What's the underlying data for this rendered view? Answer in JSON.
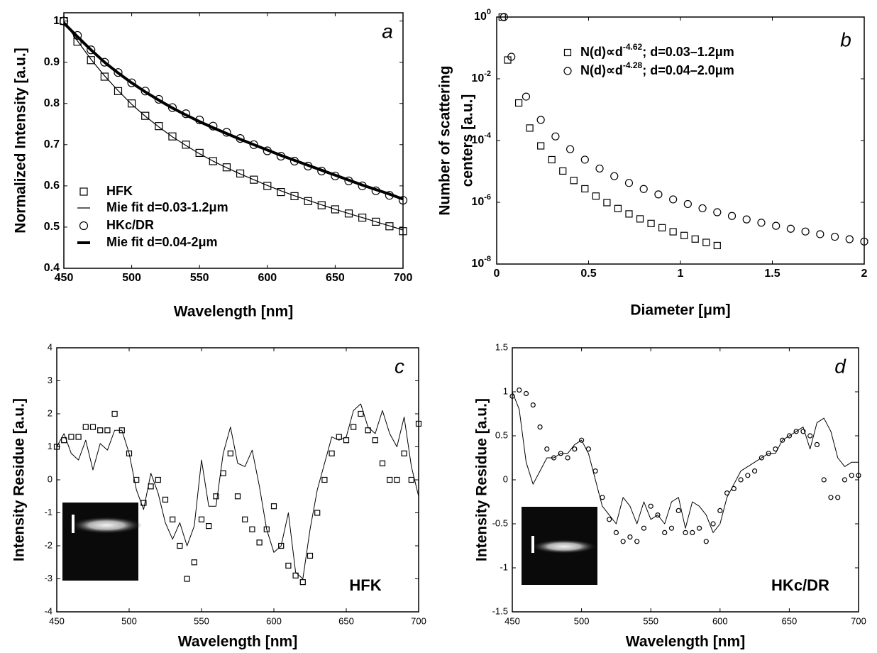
{
  "chart_data": [
    {
      "type": "line",
      "annotation": "a",
      "xlabel": "Wavelength [nm]",
      "ylabel": "Normalized Intensity [a.u.]",
      "xlim": [
        450,
        700
      ],
      "xticks": [
        450,
        500,
        550,
        600,
        650,
        700
      ],
      "ylim": [
        0.4,
        1.02
      ],
      "yticks": [
        0.4,
        0.5,
        0.6,
        0.7,
        0.8,
        0.9,
        1
      ],
      "log_y": false,
      "grid": false,
      "legend": "lower left",
      "x": [
        450,
        460,
        470,
        480,
        490,
        500,
        510,
        520,
        530,
        540,
        550,
        560,
        570,
        580,
        590,
        600,
        610,
        620,
        630,
        640,
        650,
        660,
        670,
        680,
        690,
        700
      ],
      "series": [
        {
          "name": "HFK",
          "color": "#000000",
          "marker": "square",
          "line_width": 0,
          "values": [
            1.0,
            0.95,
            0.905,
            0.865,
            0.83,
            0.8,
            0.77,
            0.745,
            0.72,
            0.7,
            0.68,
            0.66,
            0.645,
            0.63,
            0.615,
            0.6,
            0.585,
            0.575,
            0.563,
            0.553,
            0.543,
            0.533,
            0.523,
            0.513,
            0.502,
            0.49
          ]
        },
        {
          "name": "Mie fit d=0.03-1.2μm",
          "color": "#000000",
          "marker": null,
          "line_width": 1.2,
          "values": [
            1.0,
            0.952,
            0.907,
            0.867,
            0.831,
            0.798,
            0.769,
            0.743,
            0.719,
            0.698,
            0.678,
            0.66,
            0.644,
            0.629,
            0.615,
            0.601,
            0.588,
            0.576,
            0.565,
            0.554,
            0.543,
            0.533,
            0.523,
            0.513,
            0.503,
            0.493
          ]
        },
        {
          "name": "HKc/DR",
          "color": "#000000",
          "marker": "circle",
          "line_width": 0,
          "values": [
            1.0,
            0.965,
            0.93,
            0.9,
            0.875,
            0.85,
            0.83,
            0.81,
            0.79,
            0.775,
            0.76,
            0.745,
            0.73,
            0.715,
            0.7,
            0.685,
            0.672,
            0.66,
            0.648,
            0.636,
            0.624,
            0.612,
            0.6,
            0.588,
            0.577,
            0.565
          ]
        },
        {
          "name": "Mie fit d=0.04-2μm",
          "color": "#000000",
          "marker": null,
          "line_width": 4,
          "values": [
            0.995,
            0.962,
            0.93,
            0.9,
            0.874,
            0.85,
            0.828,
            0.808,
            0.789,
            0.772,
            0.756,
            0.741,
            0.727,
            0.713,
            0.7,
            0.687,
            0.674,
            0.662,
            0.65,
            0.638,
            0.626,
            0.614,
            0.602,
            0.591,
            0.58,
            0.568
          ]
        }
      ]
    },
    {
      "type": "scatter",
      "annotation": "b",
      "xlabel": "Diameter [μm]",
      "ylabel": [
        "Number of scattering",
        "centers [a.u.]"
      ],
      "xlim": [
        0,
        2
      ],
      "xticks": [
        0,
        0.5,
        1,
        1.5,
        2
      ],
      "ylim": [
        1e-08,
        1
      ],
      "log_y": true,
      "grid": false,
      "legend": "upper right",
      "yticks": [
        {
          "value": 1e-08,
          "label": "10",
          "exponent": "-8"
        },
        {
          "value": 1e-06,
          "label": "10",
          "exponent": "-6"
        },
        {
          "value": 0.0001,
          "label": "10",
          "exponent": "-4"
        },
        {
          "value": 0.01,
          "label": "10",
          "exponent": "-2"
        },
        {
          "value": 1,
          "label": "10",
          "exponent": "0"
        }
      ],
      "series": [
        {
          "name": "N(d)∝d",
          "name_exponent": "-4.62",
          "name_tail": "; d=0.03–1.2μm",
          "color": "#000000",
          "marker": "square",
          "x": [
            0.03,
            0.06,
            0.12,
            0.18,
            0.24,
            0.3,
            0.36,
            0.42,
            0.48,
            0.54,
            0.6,
            0.66,
            0.72,
            0.78,
            0.84,
            0.9,
            0.96,
            1.02,
            1.08,
            1.14,
            1.2
          ],
          "values": [
            1,
            0.0406,
            0.00165,
            0.000254,
            6.72e-05,
            2.4e-05,
            1.03e-05,
            5.07e-06,
            2.74e-06,
            1.59e-06,
            9.76e-07,
            6.28e-07,
            4.2e-07,
            2.9e-07,
            2.06e-07,
            1.5e-07,
            1.11e-07,
            8.41e-08,
            6.45e-08,
            5.03e-08,
            3.97e-08
          ]
        },
        {
          "name": "N(d)∝d",
          "name_exponent": "-4.28",
          "name_tail": "; d=0.04–2.0μm",
          "color": "#000000",
          "marker": "circle",
          "x": [
            0.04,
            0.08,
            0.16,
            0.24,
            0.32,
            0.4,
            0.48,
            0.56,
            0.64,
            0.72,
            0.8,
            0.88,
            0.96,
            1.04,
            1.12,
            1.2,
            1.28,
            1.36,
            1.44,
            1.52,
            1.6,
            1.68,
            1.76,
            1.84,
            1.92,
            2.0
          ],
          "values": [
            1,
            0.0515,
            0.00265,
            0.000467,
            0.000136,
            5.25e-05,
            2.4e-05,
            1.24e-05,
            7.02e-06,
            4.24e-06,
            2.7e-06,
            1.8e-06,
            1.24e-06,
            8.79e-07,
            6.4e-07,
            4.76e-07,
            3.61e-07,
            2.79e-07,
            2.18e-07,
            1.73e-07,
            1.39e-07,
            1.13e-07,
            9.25e-08,
            7.64e-08,
            6.37e-08,
            5.35e-08
          ]
        }
      ]
    },
    {
      "type": "line",
      "annotation": "c",
      "inset_label": "HFK",
      "xlabel": "Wavelength [nm]",
      "ylabel": "Intensity Residue [a.u.]",
      "xlim": [
        450,
        700
      ],
      "xticks": [
        450,
        500,
        550,
        600,
        650,
        700
      ],
      "ylim": [
        -4,
        4
      ],
      "yticks": [
        -4,
        -3,
        -2,
        -1,
        0,
        1,
        2,
        3,
        4
      ],
      "log_y": false,
      "grid": false,
      "x": [
        450,
        455,
        460,
        465,
        470,
        475,
        480,
        485,
        490,
        495,
        500,
        505,
        510,
        515,
        520,
        525,
        530,
        535,
        540,
        545,
        550,
        555,
        560,
        565,
        570,
        575,
        580,
        585,
        590,
        595,
        600,
        605,
        610,
        615,
        620,
        625,
        630,
        635,
        640,
        645,
        650,
        655,
        660,
        665,
        670,
        675,
        680,
        685,
        690,
        695,
        700
      ],
      "series": [
        {
          "color": "#000000",
          "marker": null,
          "line_width": 1,
          "values": [
            1.0,
            1.4,
            0.8,
            0.6,
            1.2,
            0.3,
            1.1,
            0.9,
            1.5,
            1.5,
            0.8,
            -0.3,
            -0.9,
            0.2,
            -0.4,
            -1.3,
            -1.8,
            -1.3,
            -2.0,
            -1.4,
            0.6,
            -0.8,
            -0.8,
            0.8,
            1.6,
            0.5,
            0.4,
            0.9,
            -0.2,
            -1.5,
            -2.2,
            -2.0,
            -1.0,
            -2.8,
            -3.0,
            -1.5,
            -0.3,
            0.5,
            1.3,
            1.2,
            1.3,
            2.1,
            2.3,
            1.6,
            1.4,
            2.1,
            1.4,
            1.0,
            1.9,
            0.4,
            -0.5
          ]
        },
        {
          "color": "#000000",
          "marker": "square",
          "line_width": 0,
          "values": [
            1.0,
            1.2,
            1.3,
            1.3,
            1.6,
            1.6,
            1.5,
            1.5,
            2.0,
            1.5,
            0.8,
            0.0,
            -0.7,
            -0.2,
            0.0,
            -0.6,
            -1.2,
            -2.0,
            -3.0,
            -2.5,
            -1.2,
            -1.4,
            -0.5,
            0.2,
            0.8,
            -0.5,
            -1.2,
            -1.5,
            -1.9,
            -1.5,
            -0.8,
            -2.0,
            -2.6,
            -2.9,
            -3.1,
            -2.3,
            -1.0,
            0.0,
            0.8,
            1.3,
            1.2,
            1.6,
            2.0,
            1.5,
            1.2,
            0.5,
            0.0,
            0.0,
            0.8,
            0.0,
            1.7
          ]
        }
      ]
    },
    {
      "type": "line",
      "annotation": "d",
      "inset_label": "HKc/DR",
      "xlabel": "Wavelength [nm]",
      "ylabel": "Intensity Residue [a.u.]",
      "xlim": [
        450,
        700
      ],
      "xticks": [
        450,
        500,
        550,
        600,
        650,
        700
      ],
      "ylim": [
        -1.5,
        1.5
      ],
      "yticks": [
        -1.5,
        -1,
        -0.5,
        0,
        0.5,
        1,
        1.5
      ],
      "log_y": false,
      "grid": false,
      "x": [
        450,
        455,
        460,
        465,
        470,
        475,
        480,
        485,
        490,
        495,
        500,
        505,
        510,
        515,
        520,
        525,
        530,
        535,
        540,
        545,
        550,
        555,
        560,
        565,
        570,
        575,
        580,
        585,
        590,
        595,
        600,
        605,
        610,
        615,
        620,
        625,
        630,
        635,
        640,
        645,
        650,
        655,
        660,
        665,
        670,
        675,
        680,
        685,
        690,
        695,
        700
      ],
      "series": [
        {
          "color": "#000000",
          "marker": null,
          "line_width": 1,
          "values": [
            1.0,
            0.8,
            0.2,
            -0.05,
            0.1,
            0.25,
            0.25,
            0.3,
            0.3,
            0.4,
            0.45,
            0.3,
            0.0,
            -0.3,
            -0.4,
            -0.5,
            -0.2,
            -0.3,
            -0.5,
            -0.25,
            -0.45,
            -0.4,
            -0.5,
            -0.25,
            -0.2,
            -0.55,
            -0.25,
            -0.3,
            -0.4,
            -0.6,
            -0.5,
            -0.2,
            -0.05,
            0.1,
            0.15,
            0.2,
            0.25,
            0.3,
            0.3,
            0.45,
            0.5,
            0.55,
            0.6,
            0.35,
            0.65,
            0.7,
            0.55,
            0.25,
            0.15,
            0.2,
            0.2
          ]
        },
        {
          "color": "#000000",
          "marker": "circle",
          "line_width": 0,
          "values": [
            0.95,
            1.02,
            0.98,
            0.85,
            0.6,
            0.35,
            0.25,
            0.3,
            0.25,
            0.35,
            0.45,
            0.35,
            0.1,
            -0.2,
            -0.45,
            -0.6,
            -0.7,
            -0.65,
            -0.7,
            -0.55,
            -0.3,
            -0.4,
            -0.6,
            -0.55,
            -0.35,
            -0.6,
            -0.6,
            -0.55,
            -0.7,
            -0.5,
            -0.35,
            -0.15,
            -0.1,
            0.0,
            0.05,
            0.1,
            0.25,
            0.3,
            0.35,
            0.45,
            0.5,
            0.55,
            0.55,
            0.5,
            0.4,
            0.0,
            -0.2,
            -0.2,
            0.0,
            0.05,
            0.05
          ]
        }
      ]
    }
  ]
}
